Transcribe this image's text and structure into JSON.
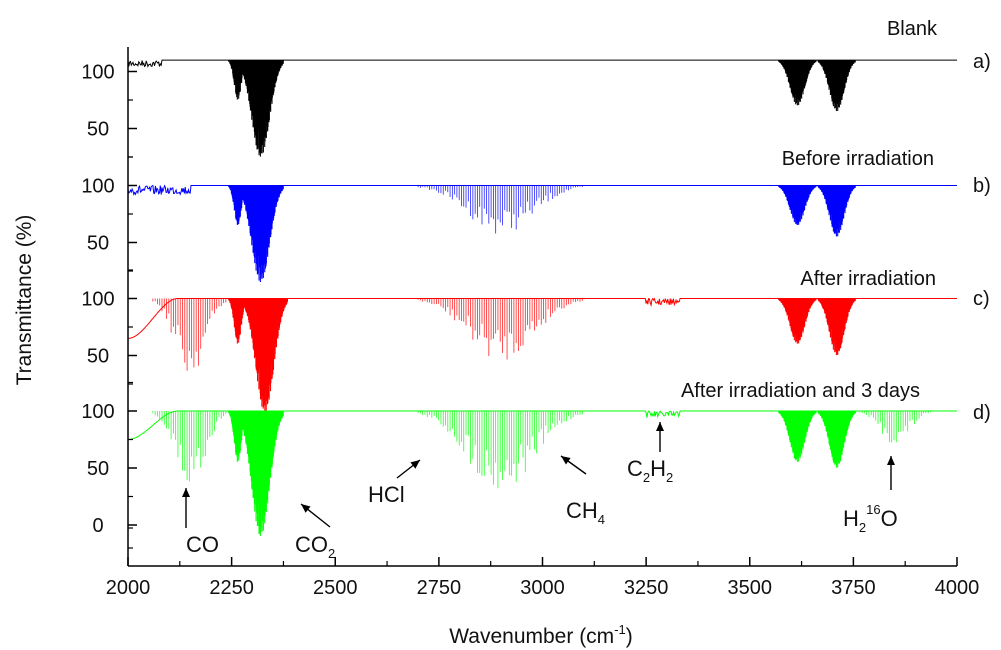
{
  "chart_data": {
    "type": "line",
    "title": "",
    "xlabel": "Wavenumber (cm",
    "xlabel_sup": "-1",
    "xlabel_tail": ")",
    "ylabel": "Transmittance (%)",
    "xlim": [
      2000,
      4000
    ],
    "x_ticks": [
      2000,
      2250,
      2500,
      2750,
      3000,
      3250,
      3500,
      3750,
      4000
    ],
    "y_tick_values": [
      100,
      50,
      0
    ],
    "grid": false,
    "legend": "none",
    "series": [
      {
        "name": "Blank",
        "tag": "a)",
        "color": "#000000",
        "baseline": 110,
        "bands": [
          {
            "center": 2320,
            "width": 55,
            "min": 25,
            "shape": "fill"
          },
          {
            "center": 2265,
            "width": 22,
            "min": 75,
            "shape": "fill"
          },
          {
            "center": 3615,
            "width": 45,
            "min": 70,
            "shape": "fill"
          },
          {
            "center": 3710,
            "width": 45,
            "min": 65,
            "shape": "fill"
          }
        ],
        "noise": {
          "from": 2000,
          "to": 2080,
          "depth": 6
        }
      },
      {
        "name": "Before irradiation",
        "tag": "b)",
        "color": "#0000ff",
        "baseline": 100,
        "bands": [
          {
            "center": 2320,
            "width": 55,
            "min": 15,
            "shape": "fill"
          },
          {
            "center": 2265,
            "width": 22,
            "min": 65,
            "shape": "fill"
          },
          {
            "center": 2900,
            "width": 200,
            "min": 57,
            "shape": "lines"
          },
          {
            "center": 3615,
            "width": 45,
            "min": 65,
            "shape": "fill"
          },
          {
            "center": 3710,
            "width": 45,
            "min": 55,
            "shape": "fill"
          }
        ],
        "noise": {
          "from": 2000,
          "to": 2150,
          "depth": 8
        }
      },
      {
        "name": "After irradiation",
        "tag": "c)",
        "color": "#ff0000",
        "baseline": 100,
        "bands": [
          {
            "center": 2330,
            "width": 55,
            "min": 0,
            "shape": "fill"
          },
          {
            "center": 2265,
            "width": 22,
            "min": 60,
            "shape": "fill"
          },
          {
            "center": 2150,
            "width": 90,
            "min": 30,
            "shape": "lines"
          },
          {
            "center": 2900,
            "width": 200,
            "min": 45,
            "shape": "lines"
          },
          {
            "center": 3615,
            "width": 45,
            "min": 60,
            "shape": "fill"
          },
          {
            "center": 3710,
            "width": 45,
            "min": 50,
            "shape": "fill"
          }
        ],
        "edge": {
          "from": 2000,
          "to": 2060,
          "level": 65
        },
        "noise": {
          "from": 3250,
          "to": 3330,
          "depth": 6
        }
      },
      {
        "name": "After irradiation and 3 days",
        "tag": "d)",
        "color": "#00ff00",
        "baseline": 100,
        "bands": [
          {
            "center": 2320,
            "width": 55,
            "min": -10,
            "shape": "fill"
          },
          {
            "center": 2265,
            "width": 22,
            "min": 55,
            "shape": "fill"
          },
          {
            "center": 2150,
            "width": 90,
            "min": 30,
            "shape": "lines"
          },
          {
            "center": 2900,
            "width": 200,
            "min": 28,
            "shape": "lines"
          },
          {
            "center": 3615,
            "width": 45,
            "min": 55,
            "shape": "fill"
          },
          {
            "center": 3710,
            "width": 45,
            "min": 50,
            "shape": "fill"
          },
          {
            "center": 3850,
            "width": 90,
            "min": 70,
            "shape": "lines"
          }
        ],
        "edge": {
          "from": 2000,
          "to": 2060,
          "level": 75
        },
        "noise": {
          "from": 3250,
          "to": 3330,
          "depth": 6
        }
      }
    ],
    "annotations": [
      {
        "label": "CO",
        "sub": "",
        "tail": "",
        "sup": "",
        "arrow": "up"
      },
      {
        "label": "CO",
        "sub": "2",
        "tail": "",
        "sup": "",
        "arrow": "diag-up-left"
      },
      {
        "label": "HCl",
        "sub": "",
        "tail": "",
        "sup": "",
        "arrow": "diag-up-right"
      },
      {
        "label": "CH",
        "sub": "4",
        "tail": "",
        "sup": "",
        "arrow": "diag-up-left"
      },
      {
        "label": "C",
        "sub": "2",
        "tail": "H",
        "sub2": "2",
        "sup": "",
        "arrow": "up"
      },
      {
        "label": "H",
        "sub": "2",
        "sup": "16",
        "tail": "O",
        "arrow": "up"
      }
    ]
  }
}
